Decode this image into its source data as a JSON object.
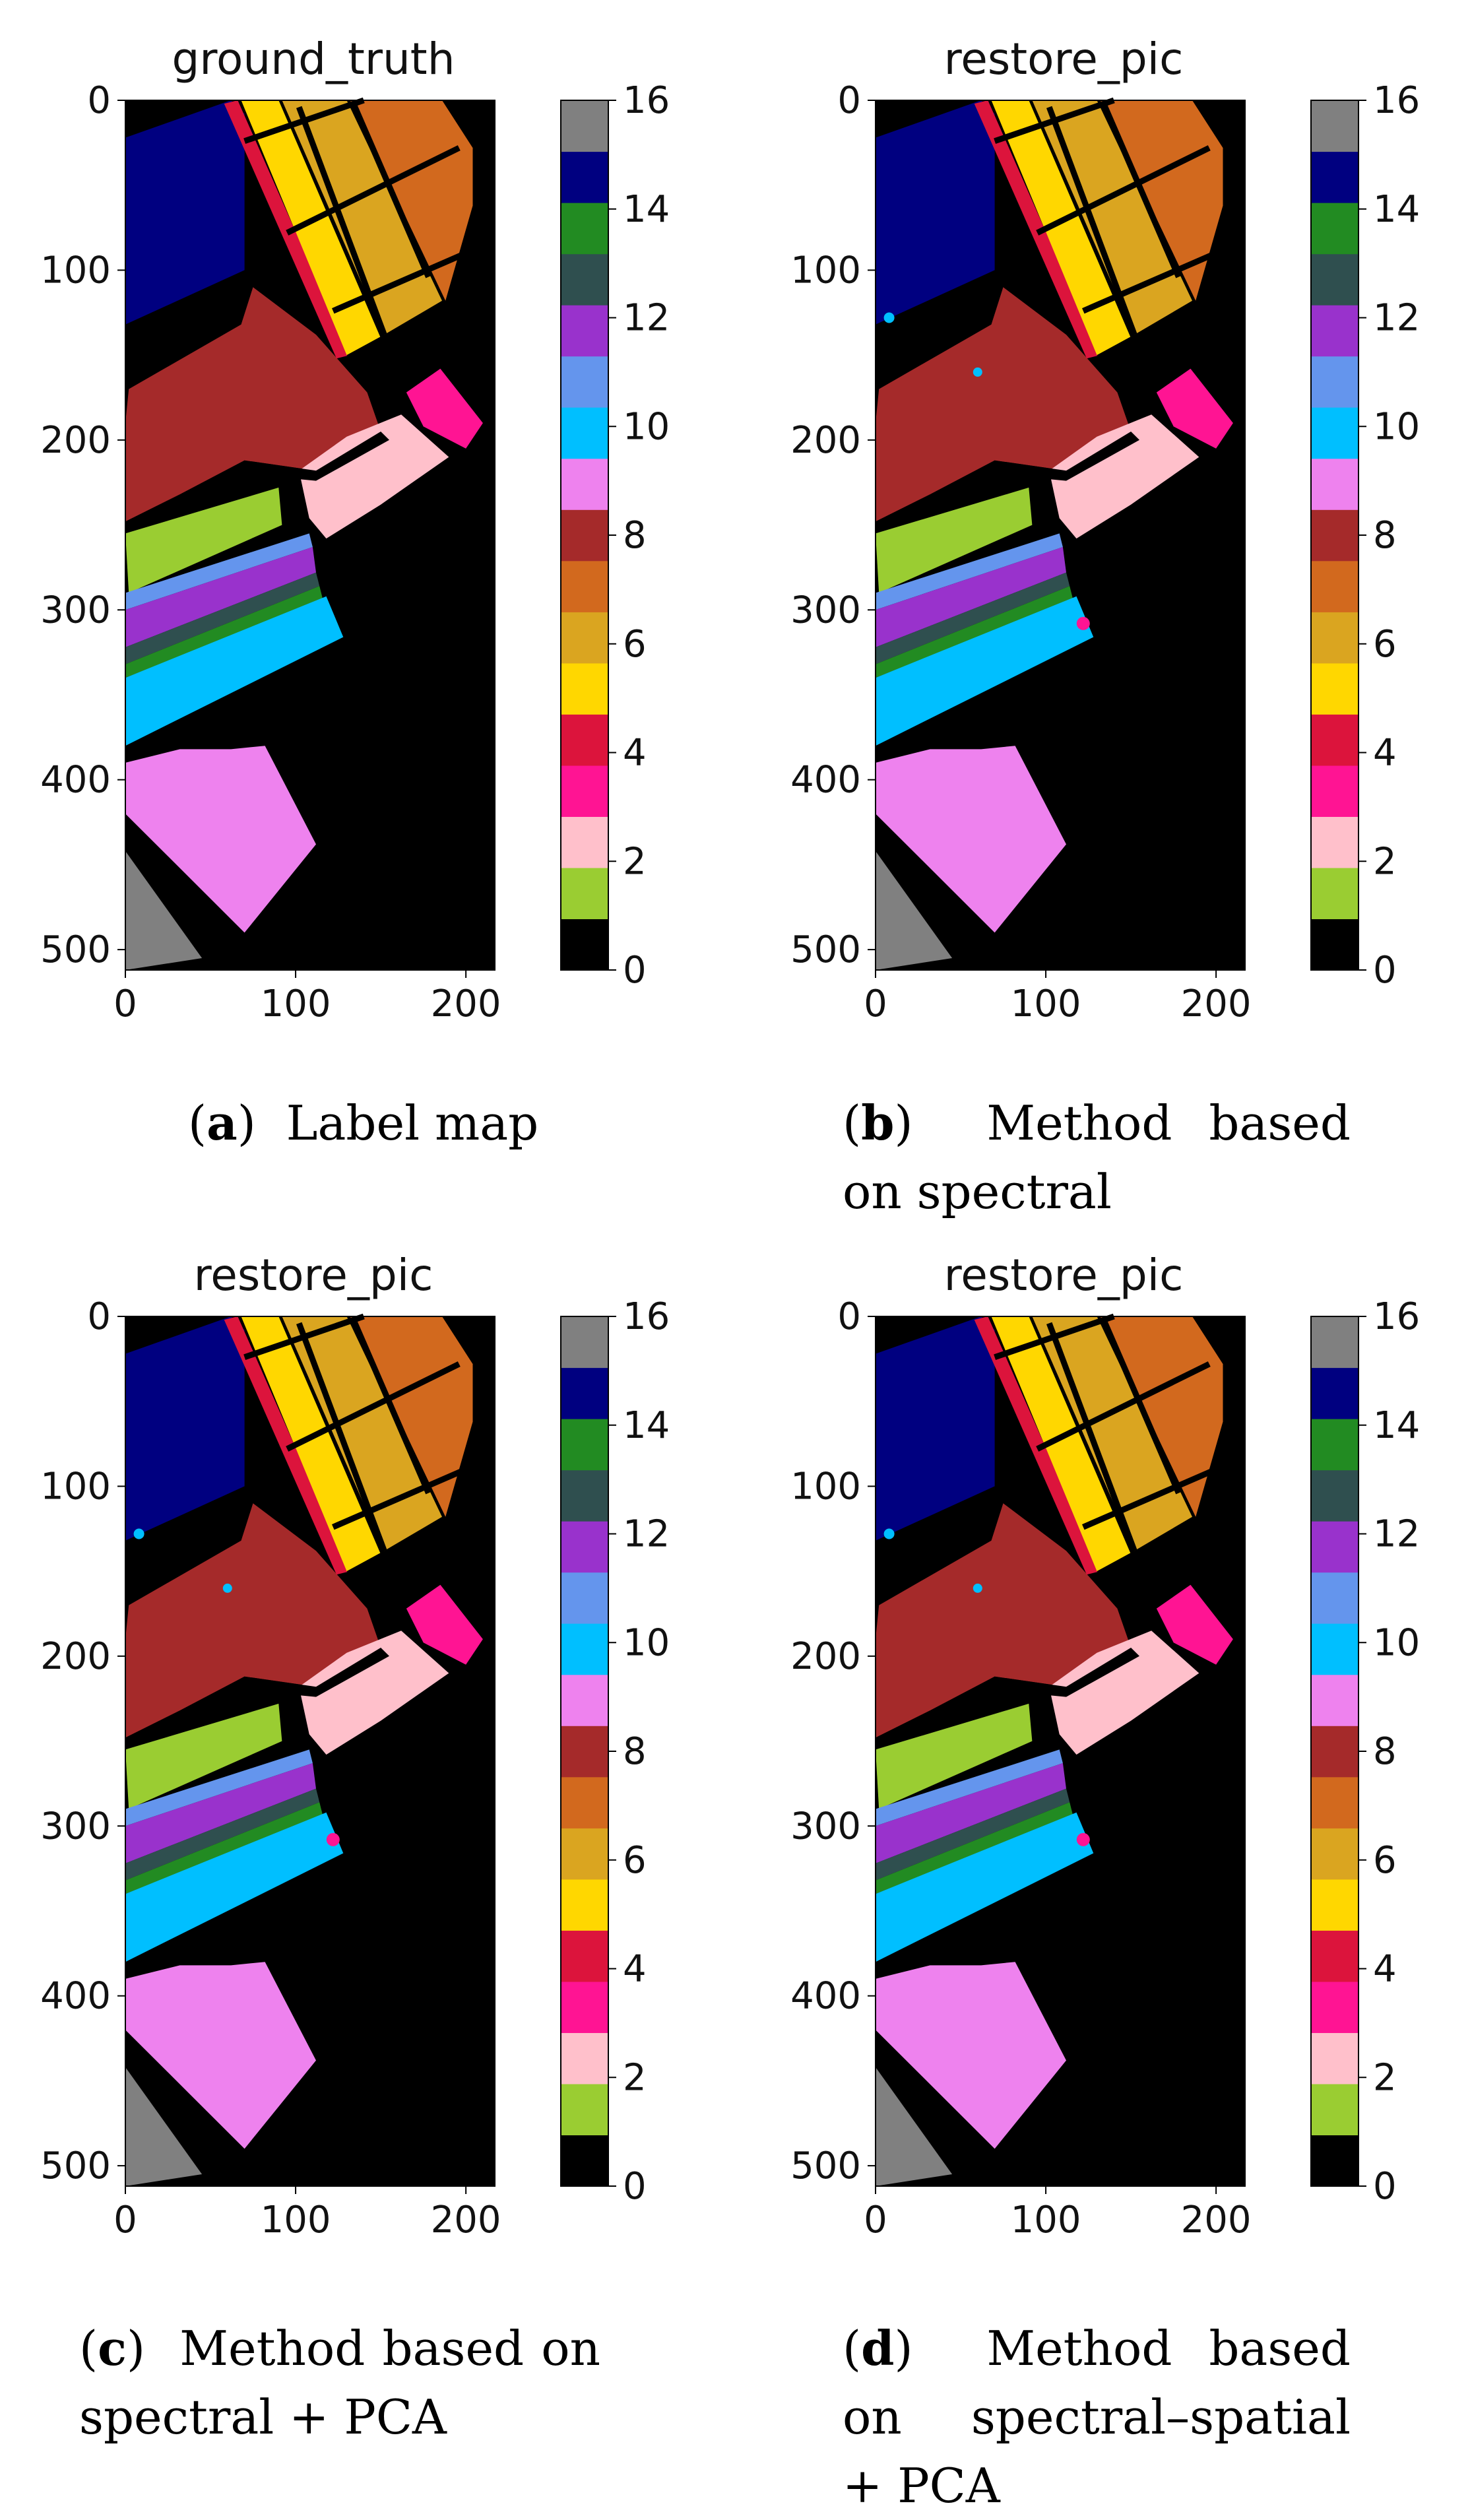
{
  "figure": {
    "panels": [
      {
        "id": "a",
        "title": "ground_truth",
        "caption_letter": "a",
        "caption_text": "Label map",
        "map": "ground_truth"
      },
      {
        "id": "b",
        "title": "restore_pic",
        "caption_letter": "b",
        "caption_text": "Method based on spectral",
        "map": "spectral"
      },
      {
        "id": "c",
        "title": "restore_pic",
        "caption_letter": "c",
        "caption_text": "Method based on spectral + PCA",
        "map": "spectral_pca"
      },
      {
        "id": "d",
        "title": "restore_pic",
        "caption_letter": "d",
        "caption_text": "Method based on spectral–spatial + PCA",
        "map": "spectral_spatial_pca"
      }
    ]
  },
  "chart_data": [
    {
      "type": "heatmap",
      "title": "ground_truth",
      "x_ticks": [
        0,
        100,
        200
      ],
      "y_ticks": [
        0,
        100,
        200,
        300,
        400,
        500
      ],
      "xlim": [
        0,
        217
      ],
      "ylim": [
        512,
        0
      ],
      "colorbar_ticks": [
        0,
        2,
        4,
        6,
        8,
        10,
        12,
        14,
        16
      ],
      "colorbar_range": [
        0,
        16
      ]
    },
    {
      "type": "heatmap",
      "title": "restore_pic",
      "x_ticks": [
        0,
        100,
        200
      ],
      "y_ticks": [
        0,
        100,
        200,
        300,
        400,
        500
      ],
      "xlim": [
        0,
        217
      ],
      "ylim": [
        512,
        0
      ],
      "colorbar_ticks": [
        0,
        2,
        4,
        6,
        8,
        10,
        12,
        14,
        16
      ],
      "colorbar_range": [
        0,
        16
      ]
    },
    {
      "type": "heatmap",
      "title": "restore_pic",
      "x_ticks": [
        0,
        100,
        200
      ],
      "y_ticks": [
        0,
        100,
        200,
        300,
        400,
        500
      ],
      "xlim": [
        0,
        217
      ],
      "ylim": [
        512,
        0
      ],
      "colorbar_ticks": [
        0,
        2,
        4,
        6,
        8,
        10,
        12,
        14,
        16
      ],
      "colorbar_range": [
        0,
        16
      ]
    },
    {
      "type": "heatmap",
      "title": "restore_pic",
      "x_ticks": [
        0,
        100,
        200
      ],
      "y_ticks": [
        0,
        100,
        200,
        300,
        400,
        500
      ],
      "xlim": [
        0,
        217
      ],
      "ylim": [
        512,
        0
      ],
      "colorbar_ticks": [
        0,
        2,
        4,
        6,
        8,
        10,
        12,
        14,
        16
      ],
      "colorbar_range": [
        0,
        16
      ]
    }
  ],
  "class_colors": [
    "#000000",
    "#9acd32",
    "#ffc0cb",
    "#ff1493",
    "#dc143c",
    "#ffd700",
    "#daa520",
    "#d2691e",
    "#a52a2a",
    "#ee82ee",
    "#00bfff",
    "#6495ed",
    "#9932cc",
    "#2f4f4f",
    "#228b22",
    "#000080",
    "#808080"
  ]
}
